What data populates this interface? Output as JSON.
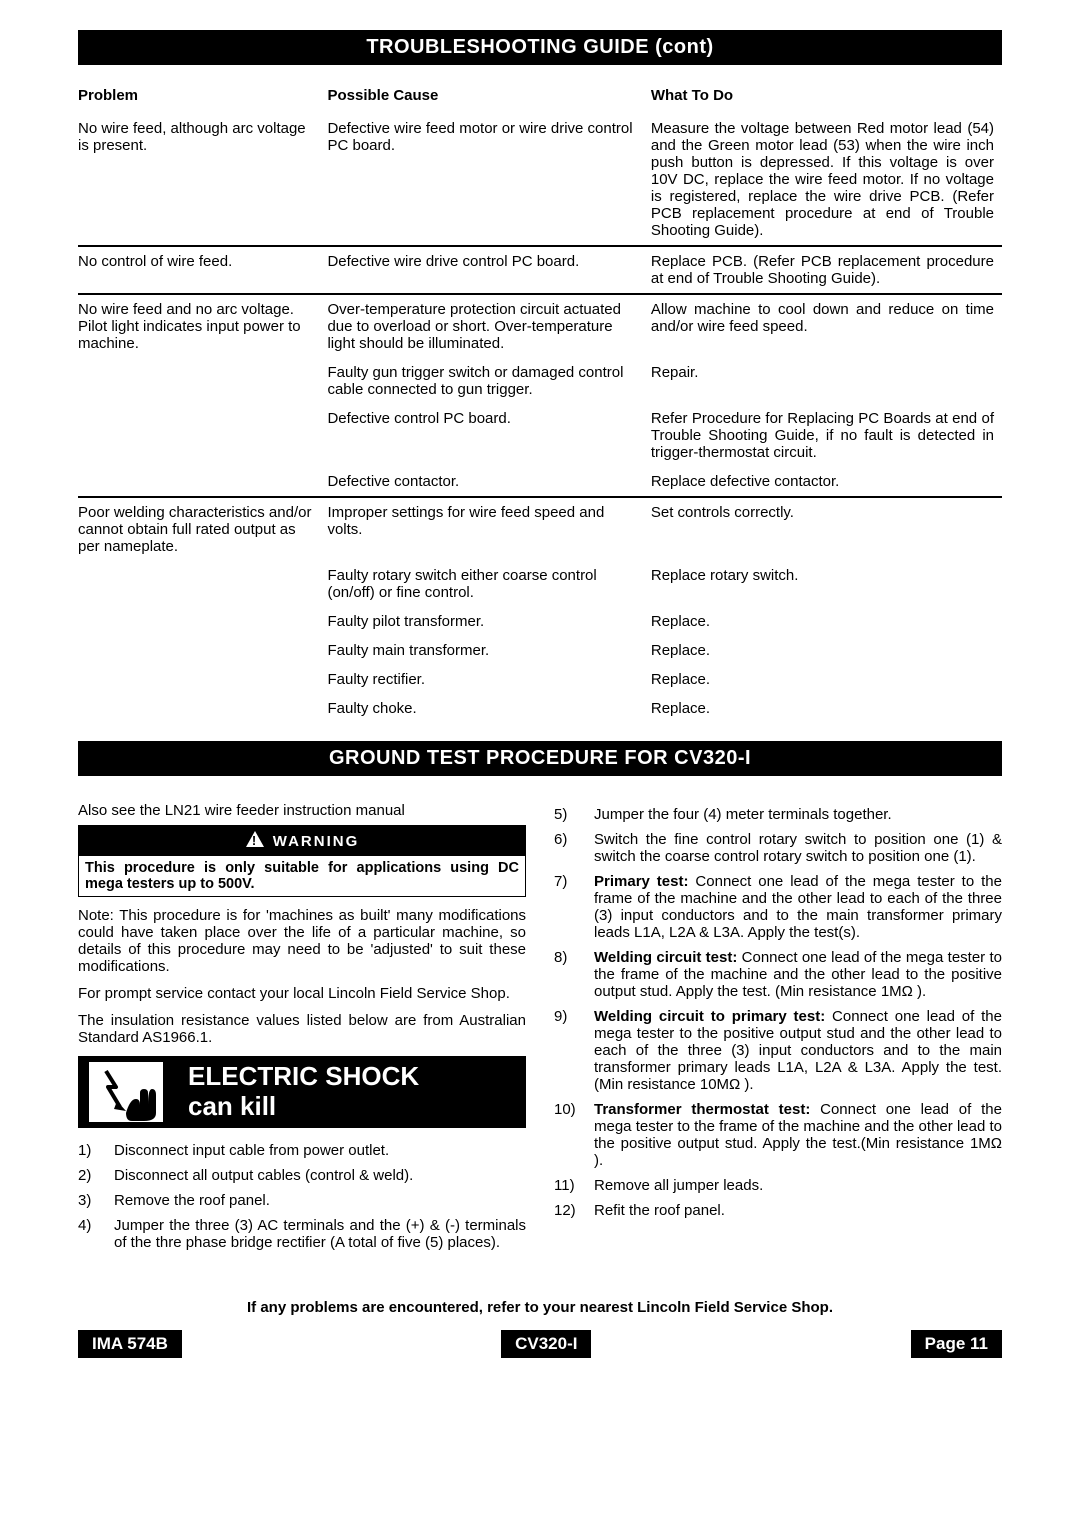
{
  "section_title_1": "TROUBLESHOOTING GUIDE (cont)",
  "table": {
    "headers": {
      "problem": "Problem",
      "cause": "Possible Cause",
      "action": "What To Do"
    },
    "rows": [
      {
        "problem": "No wire feed, although arc voltage is present.",
        "items": [
          {
            "cause": "Defective wire feed motor or wire drive control PC board.",
            "action": "Measure the voltage between Red motor lead (54) and the Green motor lead (53) when the wire inch push button is depressed. If this voltage is over 10V DC, replace the wire feed motor. If no voltage is registered, replace the wire drive PCB. (Refer PCB replacement procedure at end of Trouble Shooting Guide)."
          }
        ]
      },
      {
        "problem": "No control of wire feed.",
        "items": [
          {
            "cause": "Defective wire drive control PC board.",
            "action": "Replace PCB. (Refer PCB replacement procedure at end of Trouble Shooting Guide)."
          }
        ]
      },
      {
        "problem": "No wire feed and no arc voltage. Pilot light indicates input power to machine.",
        "items": [
          {
            "cause": "Over-temperature protection circuit actuated due to overload or short. Over-temperature light should be illuminated.",
            "action": "Allow machine to cool down and reduce on time and/or wire feed speed."
          },
          {
            "cause": "Faulty gun trigger switch or damaged control cable connected to gun trigger.",
            "action": "Repair."
          },
          {
            "cause": "Defective control PC board.",
            "action": "Refer Procedure for Replacing PC Boards at end of Trouble Shooting Guide, if no fault is detected in trigger-thermostat circuit."
          },
          {
            "cause": "Defective contactor.",
            "action": "Replace defective contactor."
          }
        ]
      },
      {
        "problem": "Poor welding characteristics and/or cannot obtain full rated output as per nameplate.",
        "items": [
          {
            "cause": "Improper settings for wire feed speed and volts.",
            "action": "Set controls correctly."
          },
          {
            "cause": "Faulty rotary switch either coarse control (on/off) or fine control.",
            "action": "Replace rotary switch."
          },
          {
            "cause": "Faulty pilot transformer.",
            "action": "Replace."
          },
          {
            "cause": "Faulty main transformer.",
            "action": "Replace."
          },
          {
            "cause": "Faulty rectifier.",
            "action": "Replace."
          },
          {
            "cause": "Faulty choke.",
            "action": "Replace."
          }
        ]
      }
    ]
  },
  "section_title_2": "GROUND TEST PROCEDURE FOR CV320-I",
  "ground_intro": "Also see the LN21 wire feeder instruction manual",
  "warning_label": "WARNING",
  "warning_text": "This procedure is only suitable for applications using DC mega testers up to 500V.",
  "note_text": "Note: This procedure is for 'machines as built' many modifications could have taken place over the life of a particular machine, so details of this procedure may need to be 'adjusted' to suit these modifications.",
  "service_text": "For prompt service contact your local Lincoln Field Service Shop.",
  "standard_text": "The insulation resistance values listed below are from Australian Standard AS1966.1.",
  "shock_line1": "ELECTRIC SHOCK",
  "shock_line2": "can kill",
  "steps_left": [
    "Disconnect input cable from power outlet.",
    "Disconnect all output cables (control & weld).",
    "Remove the roof panel.",
    "Jumper the three (3) AC terminals and the (+) & (-) terminals of the thre phase bridge rectifier (A total of five (5) places)."
  ],
  "steps_right": [
    {
      "n": "5)",
      "t": "Jumper the four (4) meter terminals together."
    },
    {
      "n": "6)",
      "t": "Switch the fine control rotary switch to position one (1) & switch the coarse control rotary switch to position one (1)."
    },
    {
      "n": "7)",
      "before": "Primary test:",
      "t": " Connect one lead of the mega tester to the frame of the machine and the other lead to each of the three (3) input conductors and to the main transformer primary leads L1A, L2A & L3A. Apply the test(s)."
    },
    {
      "n": "8)",
      "before": "Welding circuit test:",
      "t": " Connect one lead of the mega tester to the frame of the machine and the other lead to the positive output stud. Apply the test. (Min resistance 1MΩ )."
    },
    {
      "n": "9)",
      "before": "Welding circuit to primary test:",
      "t": " Connect one lead of the mega tester to the positive output stud and the other lead to each of the three (3) input conductors and to the main transformer primary leads L1A, L2A & L3A. Apply the test. (Min resistance 10MΩ )."
    },
    {
      "n": "10)",
      "before": "Transformer thermostat test:",
      "t": " Connect one lead of the mega tester to the frame of the machine and the other lead to the positive output stud. Apply the test.(Min resistance 1MΩ )."
    },
    {
      "n": "11)",
      "t": "Remove all jumper leads."
    },
    {
      "n": "12)",
      "t": "Refit the roof panel."
    }
  ],
  "footer_note": "If any problems are encountered, refer to your nearest Lincoln Field Service Shop.",
  "footer": {
    "left": "IMA 574B",
    "mid": "CV320-I",
    "right": "Page 11"
  }
}
